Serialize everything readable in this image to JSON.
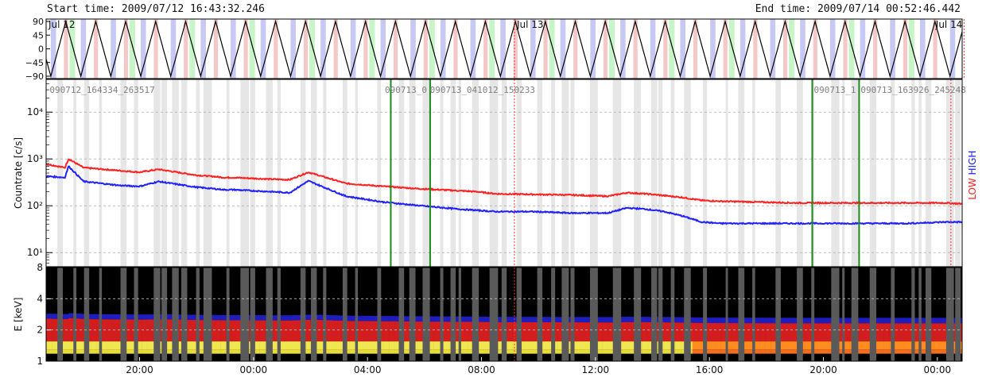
{
  "header": {
    "start_time": "Start time: 2009/07/12 16:43:32.246",
    "end_time": "End time: 2009/07/14 00:52:46.442"
  },
  "chart_data": [
    {
      "type": "line",
      "panel": "orbit-angle",
      "title": "",
      "yticks": [
        "90",
        "45",
        "0",
        "−45",
        "−90"
      ],
      "ylim": [
        -90,
        90
      ],
      "day_labels": [
        {
          "t": 0.0,
          "label": "Jul 12"
        },
        {
          "t": 25.0,
          "label": "Jul 13"
        },
        {
          "t": 49.0,
          "label": "Jul 14"
        }
      ],
      "series": [
        {
          "values_pattern": "triangle",
          "period_h": 1.6,
          "min": -90,
          "max": 90
        }
      ],
      "shaded_colors": {
        "green": "#c8f5c8",
        "blue": "#c8c8f5",
        "red": "#f5c8c8"
      }
    },
    {
      "type": "line",
      "panel": "countrate",
      "ylabel": "Countrate [c/s]",
      "yscale": "log",
      "ylim": [
        5,
        50000
      ],
      "yticks": [
        "10¹",
        "10²",
        "10³",
        "10⁴"
      ],
      "side_labels": {
        "low": "LOW",
        "high": "HIGH"
      },
      "x_hours_since_16": [
        0.0,
        1.0,
        1.2,
        2.0,
        4.0,
        5.0,
        6.0,
        8.0,
        9.0,
        9.5,
        10.0,
        12.0,
        13.0,
        14.0,
        16.0,
        18.0,
        20.0,
        22.0,
        23.0,
        24.0,
        26.0,
        28.0,
        30.0,
        31.0,
        32.0,
        33.0,
        34.0,
        35.0,
        36.0,
        38.0,
        40.0,
        42.0,
        44.0,
        46.0,
        48.0,
        48.9
      ],
      "series": [
        {
          "name": "LOW",
          "color": "#ff2020",
          "values": [
            780,
            650,
            1000,
            650,
            560,
            520,
            600,
            450,
            420,
            400,
            400,
            370,
            360,
            520,
            300,
            260,
            230,
            210,
            200,
            180,
            175,
            170,
            160,
            190,
            180,
            165,
            150,
            130,
            125,
            120,
            115,
            115,
            115,
            115,
            115,
            110
          ]
        },
        {
          "name": "HIGH",
          "color": "#2020ff",
          "values": [
            430,
            400,
            700,
            330,
            270,
            260,
            330,
            250,
            230,
            220,
            220,
            200,
            190,
            340,
            160,
            120,
            100,
            85,
            80,
            75,
            75,
            70,
            70,
            90,
            85,
            75,
            60,
            45,
            42,
            42,
            42,
            42,
            42,
            42,
            45,
            45
          ]
        }
      ],
      "event_labels": [
        {
          "t": 0.1,
          "label": "090712_164334_263517"
        },
        {
          "t": 18.0,
          "label": "090713_0"
        },
        {
          "t": 20.4,
          "label": "090713_041012_150233"
        },
        {
          "t": 40.9,
          "label": "090713_1"
        },
        {
          "t": 43.4,
          "label": "090713_163926_245248"
        }
      ],
      "event_lines_t": [
        18.4,
        20.5,
        40.9,
        43.4
      ]
    },
    {
      "type": "heatmap",
      "panel": "spectrogram",
      "ylabel": "E [keV]",
      "yscale": "log",
      "ylim": [
        1,
        8
      ],
      "yticks": [
        "1",
        "2",
        "4",
        "8"
      ],
      "xticks": [
        {
          "t": 3.28,
          "label": "20:00"
        },
        {
          "t": 7.28,
          "label": "00:00"
        },
        {
          "t": 11.28,
          "label": "04:00"
        },
        {
          "t": 15.28,
          "label": "08:00"
        },
        {
          "t": 19.28,
          "label": "12:00"
        },
        {
          "t": 23.28,
          "label": "16:00"
        },
        {
          "t": 27.28,
          "label": "20:00"
        },
        {
          "t": 31.28,
          "label": "00:00"
        }
      ]
    }
  ]
}
